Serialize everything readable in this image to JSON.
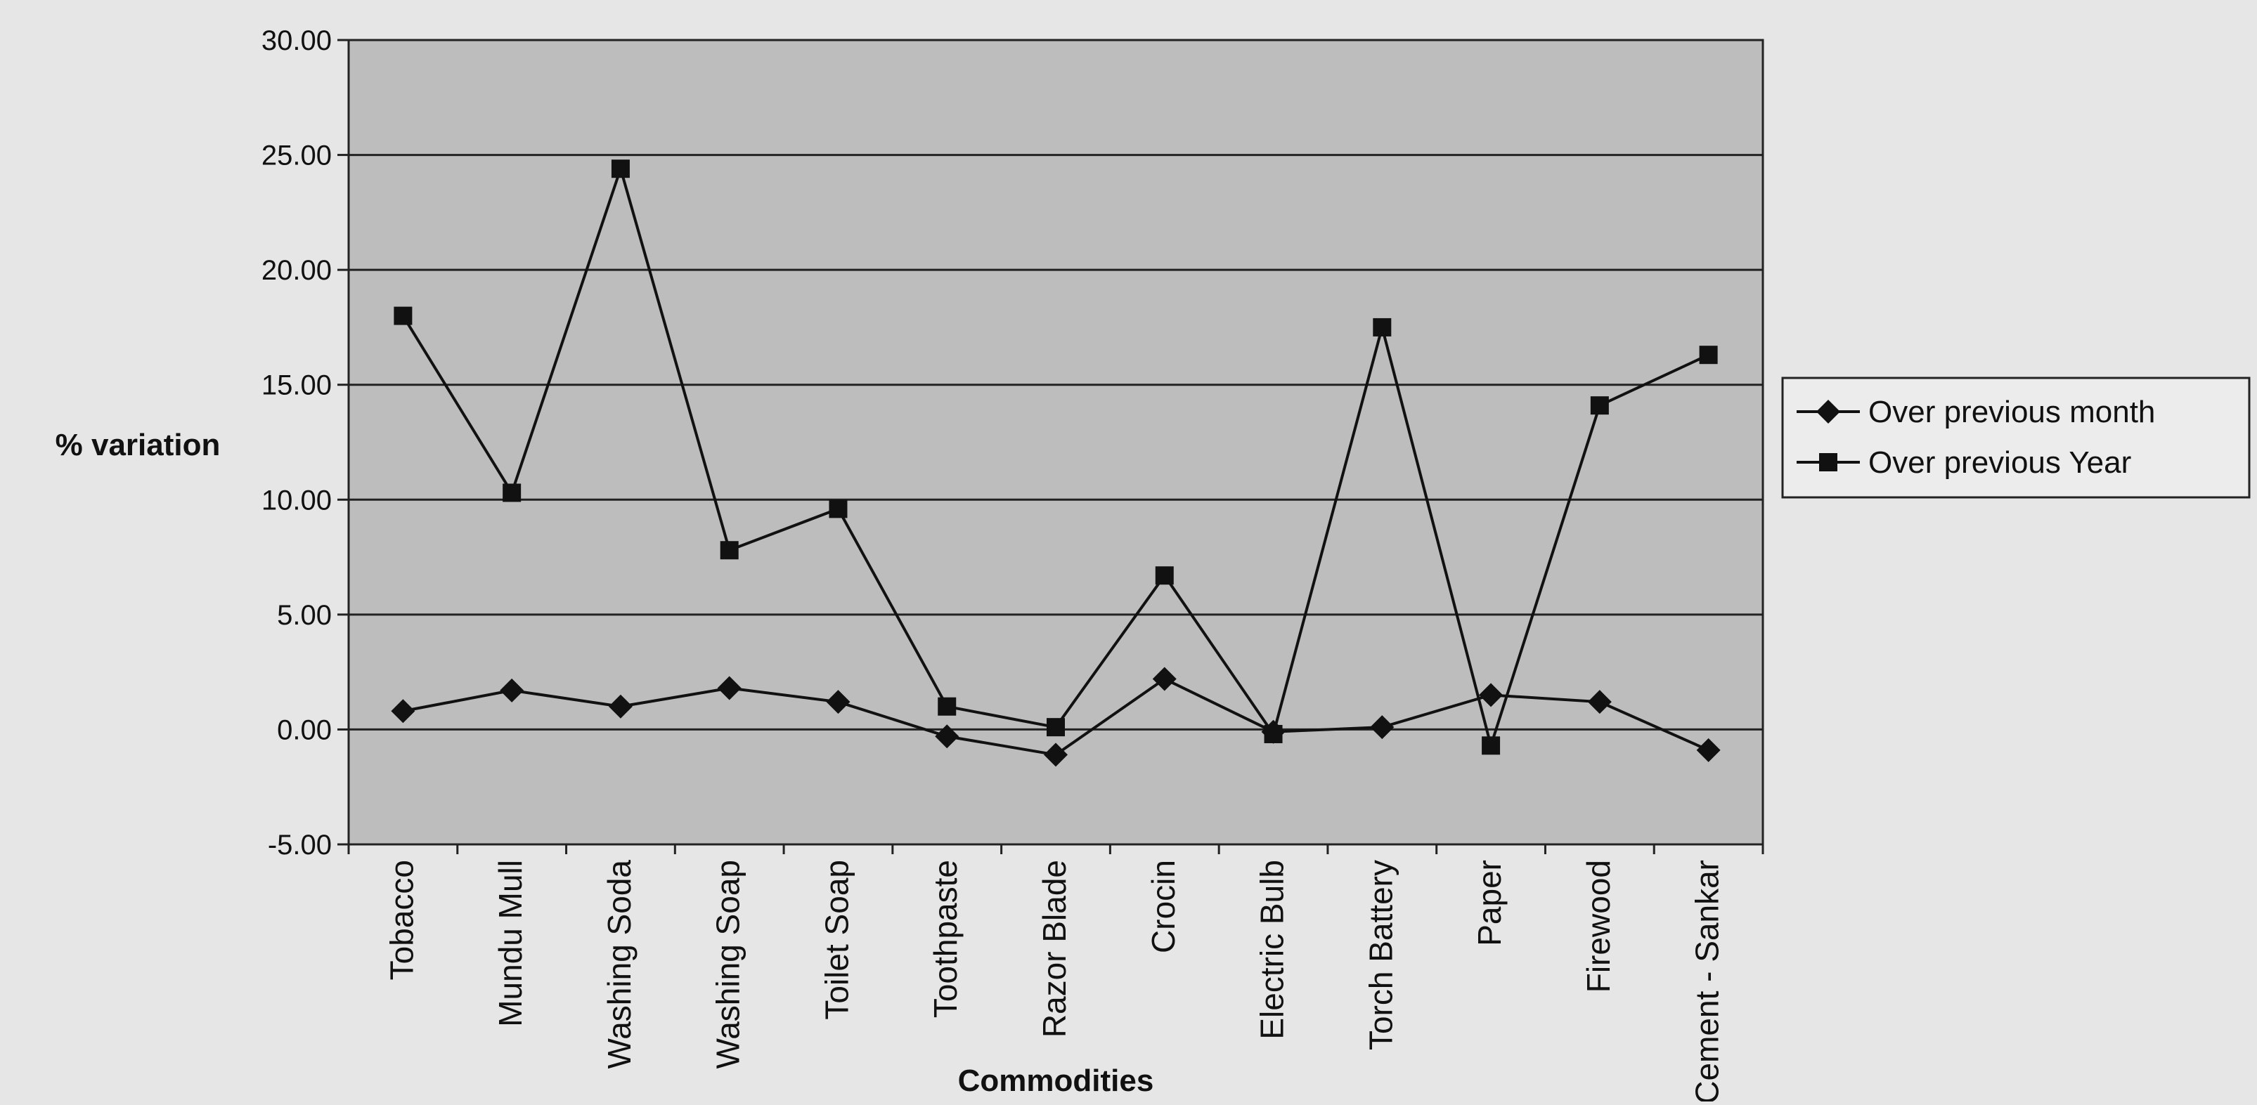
{
  "chart_data": {
    "type": "line",
    "title": "",
    "xlabel": "Commodities",
    "ylabel": "% variation",
    "categories": [
      "Tobacco",
      "Mundu Mull",
      "Washing Soda",
      "Washing Soap",
      "Toilet Soap",
      "Toothpaste",
      "Razor Blade",
      "Crocin",
      "Electric Bulb",
      "Torch Battery",
      "Paper",
      "Firewood",
      "Cement - Sankar"
    ],
    "ylim": [
      -5,
      30
    ],
    "yticks": [
      -5,
      0,
      5,
      10,
      15,
      20,
      25,
      30
    ],
    "ytick_labels": [
      "-5.00",
      "0.00",
      "5.00",
      "10.00",
      "15.00",
      "20.00",
      "25.00",
      "30.00"
    ],
    "grid": true,
    "legend_position": "right",
    "series": [
      {
        "name": "Over  previous month",
        "marker": "diamond",
        "color": "#111111",
        "values": [
          0.8,
          1.7,
          1.0,
          1.8,
          1.2,
          -0.3,
          -1.1,
          2.2,
          -0.1,
          0.1,
          1.5,
          1.2,
          -0.9
        ]
      },
      {
        "name": "Over  previous Year",
        "marker": "square",
        "color": "#111111",
        "values": [
          18.0,
          10.3,
          24.4,
          7.8,
          9.6,
          1.0,
          0.1,
          6.7,
          -0.2,
          17.5,
          -0.7,
          14.1,
          16.3
        ]
      }
    ],
    "plot_background": "#bdbdbd",
    "line_color": "#111111"
  }
}
